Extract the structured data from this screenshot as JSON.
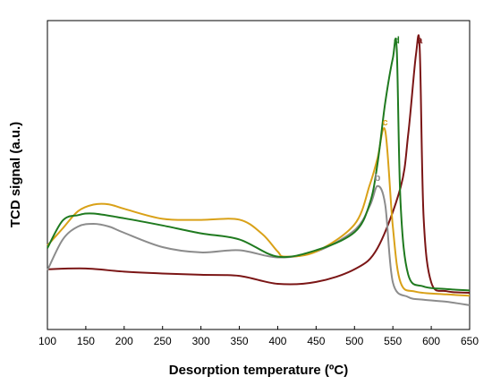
{
  "chart_data": {
    "type": "line",
    "title": "",
    "xlabel": "Desorption temperature (ºC)",
    "ylabel": "TCD signal (a.u.)",
    "xlim": [
      100,
      650
    ],
    "ylim": [
      0,
      1
    ],
    "xticks": [
      "100",
      "150",
      "200",
      "250",
      "300",
      "350",
      "400",
      "450",
      "500",
      "550",
      "600",
      "650"
    ],
    "grid": false,
    "legend": "none",
    "series": [
      {
        "name": "a",
        "color": "#7b1616",
        "x": [
          100,
          150,
          200,
          250,
          300,
          350,
          400,
          450,
          500,
          530,
          560,
          570,
          580,
          585,
          590,
          600,
          620,
          650
        ],
        "y": [
          0.15,
          0.153,
          0.141,
          0.134,
          0.129,
          0.125,
          0.095,
          0.102,
          0.15,
          0.23,
          0.46,
          0.66,
          0.96,
          0.985,
          0.35,
          0.1,
          0.067,
          0.061
        ]
      },
      {
        "name": "b",
        "color": "#8c8c8c",
        "x": [
          100,
          120,
          140,
          160,
          180,
          200,
          250,
          300,
          350,
          400,
          450,
          500,
          520,
          530,
          540,
          550,
          570,
          590,
          620,
          650
        ],
        "y": [
          0.146,
          0.263,
          0.312,
          0.322,
          0.312,
          0.288,
          0.234,
          0.214,
          0.222,
          0.195,
          0.217,
          0.298,
          0.39,
          0.465,
          0.395,
          0.1,
          0.045,
          0.035,
          0.027,
          0.014
        ]
      },
      {
        "name": "c",
        "color": "#d9a118",
        "x": [
          100,
          120,
          140,
          160,
          180,
          200,
          250,
          300,
          350,
          380,
          400,
          410,
          450,
          500,
          520,
          530,
          540,
          550,
          560,
          580,
          620,
          650
        ],
        "y": [
          0.24,
          0.305,
          0.37,
          0.395,
          0.396,
          0.379,
          0.341,
          0.337,
          0.338,
          0.283,
          0.217,
          0.198,
          0.217,
          0.32,
          0.47,
          0.57,
          0.675,
          0.31,
          0.1,
          0.065,
          0.055,
          0.05
        ]
      },
      {
        "name": "d",
        "color": "#1f7a1f",
        "x": [
          100,
          120,
          140,
          160,
          200,
          250,
          300,
          350,
          400,
          450,
          500,
          520,
          530,
          540,
          550,
          555,
          560,
          570,
          590,
          620,
          650
        ],
        "y": [
          0.23,
          0.335,
          0.355,
          0.361,
          0.343,
          0.316,
          0.286,
          0.263,
          0.198,
          0.222,
          0.29,
          0.4,
          0.55,
          0.78,
          0.95,
          0.984,
          0.4,
          0.13,
          0.085,
          0.075,
          0.07
        ]
      }
    ]
  }
}
